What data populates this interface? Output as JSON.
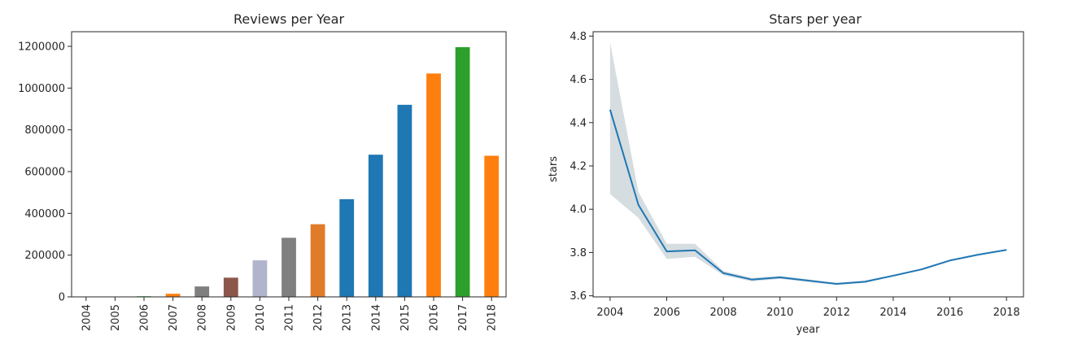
{
  "chart_data": [
    {
      "type": "bar",
      "title": "Reviews per Year",
      "xlabel": "",
      "ylabel": "",
      "categories": [
        "2004",
        "2005",
        "2006",
        "2007",
        "2008",
        "2009",
        "2010",
        "2011",
        "2012",
        "2013",
        "2014",
        "2015",
        "2016",
        "2017",
        "2018"
      ],
      "values": [
        300,
        900,
        3000,
        15000,
        50000,
        92000,
        175000,
        283000,
        348000,
        468000,
        681000,
        920000,
        1070000,
        1196000,
        676000
      ],
      "colors": [
        "#1f77b4",
        "#ff7f0e",
        "#2ca02c",
        "#ff7f0e",
        "#7f7f7f",
        "#8c564b",
        "#b0b4cc",
        "#7f7f7f",
        "#e07b2a",
        "#1f77b4",
        "#1f77b4",
        "#1f77b4",
        "#ff7f0e",
        "#2ca02c",
        "#ff7f0e"
      ],
      "ylim": [
        0,
        1270000
      ],
      "yticks": [
        0,
        200000,
        400000,
        600000,
        800000,
        1000000,
        1200000
      ],
      "ytick_labels": [
        "0",
        "200000",
        "400000",
        "600000",
        "800000",
        "1000000",
        "1200000"
      ],
      "grid": false
    },
    {
      "type": "line",
      "title": "Stars per year",
      "xlabel": "year",
      "ylabel": "stars",
      "x": [
        2004,
        2005,
        2006,
        2007,
        2008,
        2009,
        2010,
        2011,
        2012,
        2013,
        2014,
        2015,
        2016,
        2017,
        2018
      ],
      "series": [
        {
          "values": [
            4.46,
            4.02,
            3.805,
            3.81,
            3.705,
            3.675,
            3.685,
            3.67,
            3.655,
            3.665,
            3.693,
            3.722,
            3.763,
            3.79,
            3.812
          ],
          "ci_low": [
            4.07,
            3.96,
            3.77,
            3.78,
            3.695,
            3.667,
            3.678,
            3.664,
            3.65,
            3.66,
            3.689,
            3.718,
            3.76,
            3.788,
            3.81
          ],
          "ci_high": [
            4.77,
            4.08,
            3.84,
            3.84,
            3.715,
            3.683,
            3.692,
            3.676,
            3.66,
            3.67,
            3.697,
            3.726,
            3.766,
            3.792,
            3.814
          ],
          "color": "#1f77b4",
          "band_color": "#c8d2d6"
        }
      ],
      "xlim": [
        2003.4,
        2018.6
      ],
      "ylim": [
        3.595,
        4.82
      ],
      "xticks": [
        2004,
        2006,
        2008,
        2010,
        2012,
        2014,
        2016,
        2018
      ],
      "xtick_labels": [
        "2004",
        "2006",
        "2008",
        "2010",
        "2012",
        "2014",
        "2016",
        "2018"
      ],
      "yticks": [
        3.6,
        3.8,
        4.0,
        4.2,
        4.4,
        4.6,
        4.8
      ],
      "ytick_labels": [
        "3.6",
        "3.8",
        "4.0",
        "4.2",
        "4.4",
        "4.6",
        "4.8"
      ],
      "grid": false
    }
  ]
}
